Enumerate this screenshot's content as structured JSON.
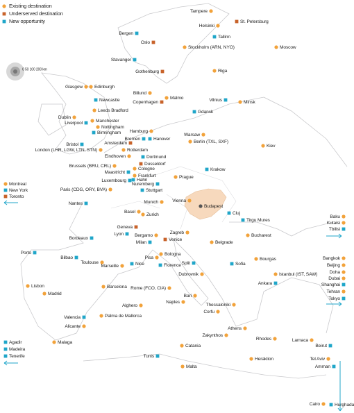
{
  "legend": [
    {
      "label": "Existing destination",
      "color": "#f2a23a"
    },
    {
      "label": "Underserved destination",
      "color": "#c8622a"
    },
    {
      "label": "New opportunity",
      "color": "#1fa6c9"
    }
  ],
  "scale_label": "0 50 100 200 km",
  "cities": [
    {
      "label": "Tampere",
      "color": "#f2a23a"
    },
    {
      "label": "St. Petersburg",
      "color": "#c8622a"
    },
    {
      "label": "Helsinki",
      "color": "#f2a23a"
    },
    {
      "label": "Tallinn",
      "color": "#1fa6c9"
    },
    {
      "label": "Bergen",
      "color": "#1fa6c9"
    },
    {
      "label": "Oslo",
      "color": "#c8622a"
    },
    {
      "label": "Stockholm (ARN, NYO)",
      "color": "#f2a23a"
    },
    {
      "label": "Moscow",
      "color": "#f2a23a"
    },
    {
      "label": "Stavanger",
      "color": "#1fa6c9"
    },
    {
      "label": "Riga",
      "color": "#f2a23a"
    },
    {
      "label": "Gothenburg",
      "color": "#c8622a"
    },
    {
      "label": "Glasgow",
      "color": "#f2a23a"
    },
    {
      "label": "Edinburgh",
      "color": "#f2a23a"
    },
    {
      "label": "Billund",
      "color": "#f2a23a"
    },
    {
      "label": "Malmo",
      "color": "#f2a23a"
    },
    {
      "label": "Copenhagen",
      "color": "#c8622a"
    },
    {
      "label": "Vilnius",
      "color": "#1fa6c9"
    },
    {
      "label": "Minsk",
      "color": "#f2a23a"
    },
    {
      "label": "Newcastle",
      "color": "#1fa6c9"
    },
    {
      "label": "Leeds Bradford",
      "color": "#f2a23a"
    },
    {
      "label": "Gdansk",
      "color": "#1fa6c9"
    },
    {
      "label": "Dublin",
      "color": "#f2a23a"
    },
    {
      "label": "Manchester",
      "color": "#f2a23a"
    },
    {
      "label": "Liverpool",
      "color": "#1fa6c9"
    },
    {
      "label": "Nottingham",
      "color": "#f2a23a"
    },
    {
      "label": "Birmingham",
      "color": "#1fa6c9"
    },
    {
      "label": "Hamburg",
      "color": "#f2a23a"
    },
    {
      "label": "Warsaw",
      "color": "#f2a23a"
    },
    {
      "label": "Bremen",
      "color": "#1fa6c9"
    },
    {
      "label": "Hanover",
      "color": "#1fa6c9"
    },
    {
      "label": "Berlin (TXL, SXF)",
      "color": "#f2a23a"
    },
    {
      "label": "Bristol",
      "color": "#1fa6c9"
    },
    {
      "label": "Amsterdam",
      "color": "#c8622a"
    },
    {
      "label": "Kiev",
      "color": "#f2a23a"
    },
    {
      "label": "London (LHR, LGW, LTN, STN)",
      "color": "#f2a23a"
    },
    {
      "label": "Rotterdam",
      "color": "#f2a23a"
    },
    {
      "label": "Eindhoven",
      "color": "#f2a23a"
    },
    {
      "label": "Dortmund",
      "color": "#1fa6c9"
    },
    {
      "label": "Dusseldorf",
      "color": "#c8622a"
    },
    {
      "label": "Brussels (BRU, CRL)",
      "color": "#f2a23a"
    },
    {
      "label": "Cologne",
      "color": "#f2a23a"
    },
    {
      "label": "Maastricht",
      "color": "#1fa6c9"
    },
    {
      "label": "Krakow",
      "color": "#1fa6c9"
    },
    {
      "label": "Frankfurt",
      "color": "#f2a23a"
    },
    {
      "label": "Hahn",
      "color": "#1fa6c9"
    },
    {
      "label": "Prague",
      "color": "#f2a23a"
    },
    {
      "label": "Luxembourg",
      "color": "#1fa6c9"
    },
    {
      "label": "Nuremberg",
      "color": "#1fa6c9"
    },
    {
      "label": "Stuttgart",
      "color": "#1fa6c9"
    },
    {
      "label": "Montreal",
      "color": "#f2a23a"
    },
    {
      "label": "New York",
      "color": "#1fa6c9"
    },
    {
      "label": "Toronto",
      "color": "#c8622a"
    },
    {
      "label": "Paris (CDG, ORY, BVA)",
      "color": "#f2a23a"
    },
    {
      "label": "Vienna",
      "color": "#f2a23a"
    },
    {
      "label": "Munich",
      "color": "#f2a23a"
    },
    {
      "label": "Nantes",
      "color": "#1fa6c9"
    },
    {
      "label": "Budapest",
      "color": "#555555"
    },
    {
      "label": "Basel",
      "color": "#f2a23a"
    },
    {
      "label": "Zurich",
      "color": "#f2a23a"
    },
    {
      "label": "Cluj",
      "color": "#1fa6c9"
    },
    {
      "label": "Tirgu Mures",
      "color": "#1fa6c9"
    },
    {
      "label": "Geneva",
      "color": "#c8622a"
    },
    {
      "label": "Lyon",
      "color": "#1fa6c9"
    },
    {
      "label": "Bergamo",
      "color": "#f2a23a"
    },
    {
      "label": "Milan",
      "color": "#1fa6c9"
    },
    {
      "label": "Zagreb",
      "color": "#f2a23a"
    },
    {
      "label": "Venice",
      "color": "#c8622a"
    },
    {
      "label": "Bucharest",
      "color": "#f2a23a"
    },
    {
      "label": "Bordeaux",
      "color": "#1fa6c9"
    },
    {
      "label": "Belgrade",
      "color": "#f2a23a"
    },
    {
      "label": "Bologna",
      "color": "#f2a23a"
    },
    {
      "label": "Bilbao",
      "color": "#1fa6c9"
    },
    {
      "label": "Toulouse",
      "color": "#f2a23a"
    },
    {
      "label": "Pisa",
      "color": "#f2a23a"
    },
    {
      "label": "Marseille",
      "color": "#f2a23a"
    },
    {
      "label": "Nice",
      "color": "#1fa6c9"
    },
    {
      "label": "Florence",
      "color": "#1fa6c9"
    },
    {
      "label": "Split",
      "color": "#1fa6c9"
    },
    {
      "label": "Sofia",
      "color": "#1fa6c9"
    },
    {
      "label": "Bourgas",
      "color": "#f2a23a"
    },
    {
      "label": "Porto",
      "color": "#1fa6c9"
    },
    {
      "label": "Dubrovnik",
      "color": "#f2a23a"
    },
    {
      "label": "Istanbul (IST, SAW)",
      "color": "#f2a23a"
    },
    {
      "label": "Ankara",
      "color": "#1fa6c9"
    },
    {
      "label": "Barcelona",
      "color": "#f2a23a"
    },
    {
      "label": "Rome (FCO, CIA)",
      "color": "#f2a23a"
    },
    {
      "label": "Lisbon",
      "color": "#f2a23a"
    },
    {
      "label": "Madrid",
      "color": "#f2a23a"
    },
    {
      "label": "Bari",
      "color": "#f2a23a"
    },
    {
      "label": "Naples",
      "color": "#f2a23a"
    },
    {
      "label": "Thessaloniki",
      "color": "#f2a23a"
    },
    {
      "label": "Alghero",
      "color": "#f2a23a"
    },
    {
      "label": "Corfu",
      "color": "#f2a23a"
    },
    {
      "label": "Valencia",
      "color": "#1fa6c9"
    },
    {
      "label": "Palma de Mallorca",
      "color": "#f2a23a"
    },
    {
      "label": "Alicante",
      "color": "#f2a23a"
    },
    {
      "label": "Athens",
      "color": "#f2a23a"
    },
    {
      "label": "Zakynthos",
      "color": "#f2a23a"
    },
    {
      "label": "Rhodes",
      "color": "#f2a23a"
    },
    {
      "label": "Larnaca",
      "color": "#f2a23a"
    },
    {
      "label": "Malaga",
      "color": "#f2a23a"
    },
    {
      "label": "Agadir",
      "color": "#1fa6c9"
    },
    {
      "label": "Madeira",
      "color": "#1fa6c9"
    },
    {
      "label": "Tenerife",
      "color": "#1fa6c9"
    },
    {
      "label": "Beirut",
      "color": "#1fa6c9"
    },
    {
      "label": "Catania",
      "color": "#f2a23a"
    },
    {
      "label": "Tunis",
      "color": "#1fa6c9"
    },
    {
      "label": "Heraklion",
      "color": "#f2a23a"
    },
    {
      "label": "Tel Aviv",
      "color": "#f2a23a"
    },
    {
      "label": "Amman",
      "color": "#1fa6c9"
    },
    {
      "label": "Malta",
      "color": "#f2a23a"
    },
    {
      "label": "Cairo",
      "color": "#f2a23a"
    },
    {
      "label": "Hurghada",
      "color": "#1fa6c9"
    },
    {
      "label": "Baku",
      "color": "#f2a23a"
    },
    {
      "label": "Kutaisi",
      "color": "#f2a23a"
    },
    {
      "label": "Tbilisi",
      "color": "#1fa6c9"
    },
    {
      "label": "Bangkok",
      "color": "#f2a23a"
    },
    {
      "label": "Beijing",
      "color": "#f2a23a"
    },
    {
      "label": "Doha",
      "color": "#f2a23a"
    },
    {
      "label": "Dubai",
      "color": "#f2a23a"
    },
    {
      "label": "Shanghai",
      "color": "#1fa6c9"
    },
    {
      "label": "Tehran",
      "color": "#f2a23a"
    },
    {
      "label": "Tokyo",
      "color": "#1fa6c9"
    }
  ]
}
